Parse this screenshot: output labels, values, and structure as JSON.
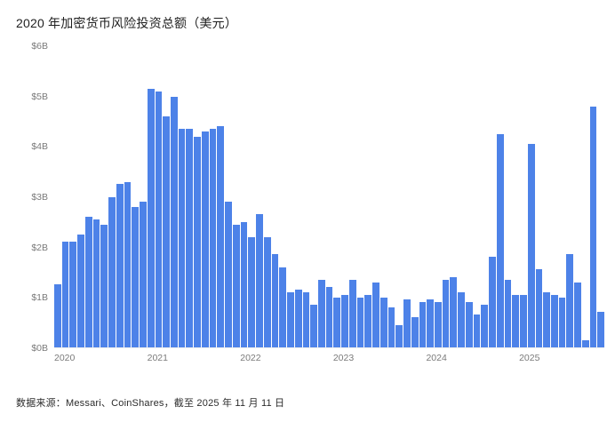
{
  "header": {
    "title": "2020 年加密货币风险投资总额（美元）"
  },
  "footer": {
    "source": "数据来源：Messari、CoinShares，截至 2025 年 11 月 11 日"
  },
  "chart_data": {
    "type": "bar",
    "title": "2020 年加密货币风险投资总额（美元）",
    "xlabel": "",
    "ylabel": "",
    "ylim": [
      0,
      6
    ],
    "y_ticks": [
      "$0B",
      "$1B",
      "$2B",
      "$3B",
      "$4B",
      "$5B",
      "$6B"
    ],
    "x_ticks": [
      "2020",
      "2021",
      "2022",
      "2023",
      "2024",
      "2025"
    ],
    "year_start_indices": [
      0,
      12,
      24,
      36,
      48,
      60
    ],
    "grid": false,
    "legend": false,
    "bar_color": "#4d82e8",
    "unit": "$B",
    "x": [
      "2020-01",
      "2020-02",
      "2020-03",
      "2020-04",
      "2020-05",
      "2020-06",
      "2020-07",
      "2020-08",
      "2020-09",
      "2020-10",
      "2020-11",
      "2020-12",
      "2021-01",
      "2021-02",
      "2021-03",
      "2021-04",
      "2021-05",
      "2021-06",
      "2021-07",
      "2021-08",
      "2021-09",
      "2021-10",
      "2021-11",
      "2021-12",
      "2022-01",
      "2022-02",
      "2022-03",
      "2022-04",
      "2022-05",
      "2022-06",
      "2022-07",
      "2022-08",
      "2022-09",
      "2022-10",
      "2022-11",
      "2022-12",
      "2023-01",
      "2023-02",
      "2023-03",
      "2023-04",
      "2023-05",
      "2023-06",
      "2023-07",
      "2023-08",
      "2023-09",
      "2023-10",
      "2023-11",
      "2023-12",
      "2024-01",
      "2024-02",
      "2024-03",
      "2024-04",
      "2024-05",
      "2024-06",
      "2024-07",
      "2024-08",
      "2024-09",
      "2024-10",
      "2024-11",
      "2024-12",
      "2025-01",
      "2025-02",
      "2025-03",
      "2025-04",
      "2025-05",
      "2025-06",
      "2025-07",
      "2025-08",
      "2025-09",
      "2025-10",
      "2025-11"
    ],
    "values": [
      1.25,
      2.1,
      2.1,
      2.25,
      2.6,
      2.55,
      2.45,
      3.0,
      3.25,
      3.3,
      2.8,
      2.9,
      5.15,
      5.1,
      4.6,
      5.0,
      4.35,
      4.35,
      4.2,
      4.3,
      4.35,
      4.4,
      2.9,
      2.45,
      2.5,
      2.2,
      2.65,
      2.2,
      1.85,
      1.6,
      1.1,
      1.15,
      1.1,
      0.85,
      1.35,
      1.2,
      1.0,
      1.05,
      1.35,
      1.0,
      1.05,
      1.3,
      1.0,
      0.8,
      0.45,
      0.95,
      0.6,
      0.9,
      0.95,
      0.9,
      1.35,
      1.4,
      1.1,
      0.9,
      0.65,
      0.85,
      1.8,
      4.25,
      1.35,
      1.05,
      1.05,
      4.05,
      1.55,
      1.1,
      1.05,
      1.0,
      1.85,
      1.3,
      0.15,
      4.8,
      0.7
    ]
  }
}
